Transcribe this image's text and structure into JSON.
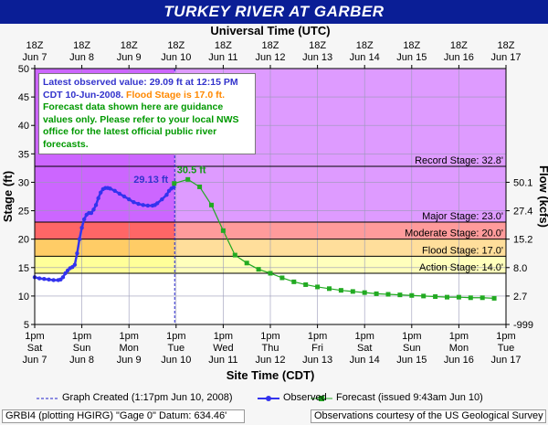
{
  "title": "TURKEY RIVER  AT GARBER",
  "chart_data": {
    "type": "line",
    "title": "TURKEY RIVER  AT GARBER",
    "top_axis_title": "Universal Time (UTC)",
    "bottom_axis_title": "Site Time (CDT)",
    "left_axis_title": "Stage (ft)",
    "right_axis_title": "Flow (kcfs)",
    "y_range": [
      5,
      50
    ],
    "y_ticks": [
      5,
      10,
      15,
      20,
      25,
      30,
      35,
      40,
      45,
      50
    ],
    "x_range_days": [
      "Jun 7 1pm",
      "Jun 17 1pm"
    ],
    "top_ticks": [
      {
        "time": "18Z",
        "date": "Jun 7"
      },
      {
        "time": "18Z",
        "date": "Jun 8"
      },
      {
        "time": "18Z",
        "date": "Jun 9"
      },
      {
        "time": "18Z",
        "date": "Jun 10"
      },
      {
        "time": "18Z",
        "date": "Jun 11"
      },
      {
        "time": "18Z",
        "date": "Jun 12"
      },
      {
        "time": "18Z",
        "date": "Jun 13"
      },
      {
        "time": "18Z",
        "date": "Jun 14"
      },
      {
        "time": "18Z",
        "date": "Jun 15"
      },
      {
        "time": "18Z",
        "date": "Jun 16"
      },
      {
        "time": "18Z",
        "date": "Jun 17"
      }
    ],
    "bottom_ticks": [
      {
        "time": "1pm",
        "day": "Sat",
        "date": "Jun 7"
      },
      {
        "time": "1pm",
        "day": "Sun",
        "date": "Jun 8"
      },
      {
        "time": "1pm",
        "day": "Mon",
        "date": "Jun 9"
      },
      {
        "time": "1pm",
        "day": "Tue",
        "date": "Jun 10"
      },
      {
        "time": "1pm",
        "day": "Wed",
        "date": "Jun 11"
      },
      {
        "time": "1pm",
        "day": "Thu",
        "date": "Jun 12"
      },
      {
        "time": "1pm",
        "day": "Fri",
        "date": "Jun 13"
      },
      {
        "time": "1pm",
        "day": "Sat",
        "date": "Jun 14"
      },
      {
        "time": "1pm",
        "day": "Sun",
        "date": "Jun 15"
      },
      {
        "time": "1pm",
        "day": "Mon",
        "date": "Jun 16"
      },
      {
        "time": "1pm",
        "day": "Tue",
        "date": "Jun 17"
      }
    ],
    "flow_ticks": [
      {
        "stage": 30,
        "label": "50.1"
      },
      {
        "stage": 25,
        "label": "27.4"
      },
      {
        "stage": 20,
        "label": "15.2"
      },
      {
        "stage": 15,
        "label": "8.0"
      },
      {
        "stage": 10,
        "label": "2.7"
      },
      {
        "stage": 5,
        "label": "-999"
      }
    ],
    "stage_bands": [
      {
        "name": "Action Stage",
        "value": 14.0,
        "label": "Action Stage: 14.0'",
        "color": "#ffff99"
      },
      {
        "name": "Flood Stage",
        "value": 17.0,
        "label": "Flood Stage: 17.0'",
        "color": "#ffcc66"
      },
      {
        "name": "Moderate Stage",
        "value": 20.0,
        "label": "Moderate Stage: 20.0'",
        "color": "#ff6666"
      },
      {
        "name": "Major Stage",
        "value": 23.0,
        "label": "Major Stage: 23.0'",
        "color": "#cc66ff"
      },
      {
        "name": "Record Stage",
        "value": 32.8,
        "label": "Record Stage: 32.8'"
      }
    ],
    "observed": {
      "name": "Observed",
      "color": "#3333ee",
      "points": [
        [
          0.0,
          13.3
        ],
        [
          0.1,
          13.1
        ],
        [
          0.2,
          13.0
        ],
        [
          0.3,
          12.9
        ],
        [
          0.4,
          12.8
        ],
        [
          0.5,
          12.8
        ],
        [
          0.55,
          12.9
        ],
        [
          0.6,
          13.3
        ],
        [
          0.65,
          14.0
        ],
        [
          0.7,
          14.5
        ],
        [
          0.75,
          14.9
        ],
        [
          0.8,
          15.1
        ],
        [
          0.85,
          15.5
        ],
        [
          0.9,
          17.5
        ],
        [
          0.95,
          20.0
        ],
        [
          1.0,
          22.0
        ],
        [
          1.05,
          23.5
        ],
        [
          1.1,
          24.3
        ],
        [
          1.15,
          24.6
        ],
        [
          1.2,
          24.6
        ],
        [
          1.25,
          25.2
        ],
        [
          1.3,
          26.0
        ],
        [
          1.35,
          27.2
        ],
        [
          1.4,
          28.2
        ],
        [
          1.45,
          28.8
        ],
        [
          1.5,
          29.0
        ],
        [
          1.55,
          29.0
        ],
        [
          1.6,
          28.9
        ],
        [
          1.7,
          28.5
        ],
        [
          1.8,
          28.0
        ],
        [
          1.9,
          27.5
        ],
        [
          2.0,
          27.0
        ],
        [
          2.1,
          26.5
        ],
        [
          2.2,
          26.2
        ],
        [
          2.3,
          26.0
        ],
        [
          2.4,
          25.9
        ],
        [
          2.5,
          25.9
        ],
        [
          2.55,
          26.0
        ],
        [
          2.6,
          26.3
        ],
        [
          2.7,
          27.0
        ],
        [
          2.8,
          27.8
        ],
        [
          2.85,
          28.5
        ],
        [
          2.9,
          28.9
        ],
        [
          2.95,
          29.13
        ]
      ]
    },
    "forecast": {
      "name": "Forecast (issued 9:43am Jun 10)",
      "color": "#22aa22",
      "points": [
        [
          2.96,
          29.8
        ],
        [
          3.25,
          30.5
        ],
        [
          3.5,
          29.2
        ],
        [
          3.75,
          26.0
        ],
        [
          4.0,
          21.5
        ],
        [
          4.25,
          17.2
        ],
        [
          4.5,
          15.8
        ],
        [
          4.75,
          14.7
        ],
        [
          5.0,
          14.0
        ],
        [
          5.25,
          13.2
        ],
        [
          5.5,
          12.5
        ],
        [
          5.75,
          12.0
        ],
        [
          6.0,
          11.6
        ],
        [
          6.25,
          11.3
        ],
        [
          6.5,
          11.0
        ],
        [
          6.75,
          10.8
        ],
        [
          7.0,
          10.6
        ],
        [
          7.25,
          10.4
        ],
        [
          7.5,
          10.3
        ],
        [
          7.75,
          10.2
        ],
        [
          8.0,
          10.1
        ],
        [
          8.25,
          10.0
        ],
        [
          8.5,
          9.9
        ],
        [
          8.75,
          9.8
        ],
        [
          9.0,
          9.8
        ],
        [
          9.25,
          9.7
        ],
        [
          9.5,
          9.7
        ],
        [
          9.75,
          9.6
        ]
      ]
    },
    "annotations": {
      "observed_peak": "29.13 ft",
      "forecast_peak": "30.5 ft"
    },
    "graph_created_line_day": 2.97
  },
  "info_box": {
    "line1": "Latest observed value: 29.09 ft at 12:15 PM CDT 10-Jun-2008.",
    "flood": "Flood Stage is 17.0 ft.",
    "rest": "Forecast data shown here are guidance values only. Please refer to your local NWS office for the latest official public river forecasts."
  },
  "legend": {
    "graph_created": "Graph Created (1:17pm Jun 10, 2008)",
    "observed": "Observed",
    "forecast": "Forecast (issued 9:43am Jun 10)"
  },
  "footer": {
    "left": "GRBI4 (plotting HGIRG)  \"Gage 0\" Datum: 634.46'",
    "right": "Observations courtesy of the  US Geological Survey"
  },
  "colors": {
    "title_bg": "#0a1e96",
    "observed": "#3333ee",
    "forecast": "#22aa22"
  }
}
